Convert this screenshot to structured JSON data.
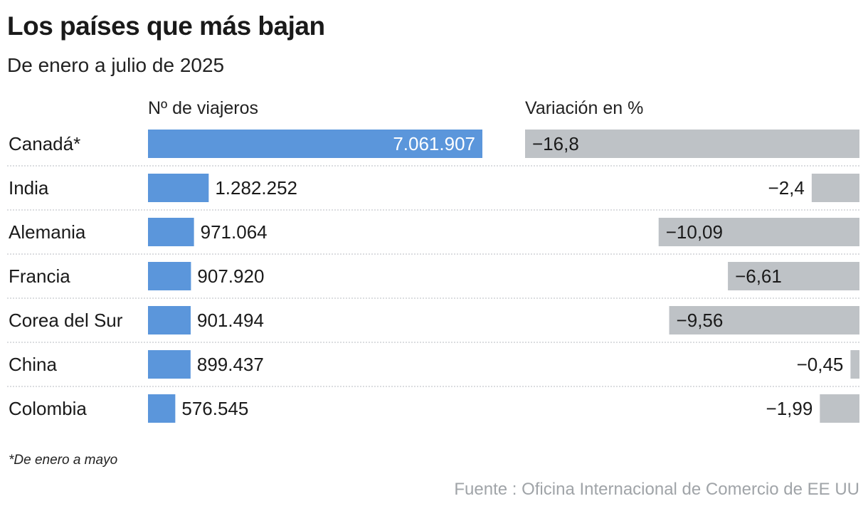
{
  "title": "Los países que más bajan",
  "subtitle": "De enero a julio de 2025",
  "footnote": "*De enero a mayo",
  "source": "Fuente : Oficina Internacional de Comercio de EE UU",
  "chart_data": {
    "type": "bar",
    "categories": [
      "Canadá*",
      "India",
      "Alemania",
      "Francia",
      "Corea del Sur",
      "China",
      "Colombia"
    ],
    "series": [
      {
        "name": "Nº de viajeros",
        "values": [
          7061907,
          1282252,
          971064,
          907920,
          901494,
          899437,
          576545
        ],
        "labels": [
          "7.061.907",
          "1.282.252",
          "971.064",
          "907.920",
          "901.494",
          "899.437",
          "576.545"
        ],
        "color": "#5b96db"
      },
      {
        "name": "Variación en %",
        "values": [
          -16.8,
          -2.4,
          -10.09,
          -6.61,
          -9.56,
          -0.45,
          -1.99
        ],
        "labels": [
          "−16,8",
          "−2,4",
          "−10,09",
          "−6,61",
          "−9,56",
          "−0,45",
          "−1,99"
        ],
        "color": "#bec2c6"
      }
    ],
    "orientation": "horizontal",
    "grid": false,
    "legend": "none"
  }
}
